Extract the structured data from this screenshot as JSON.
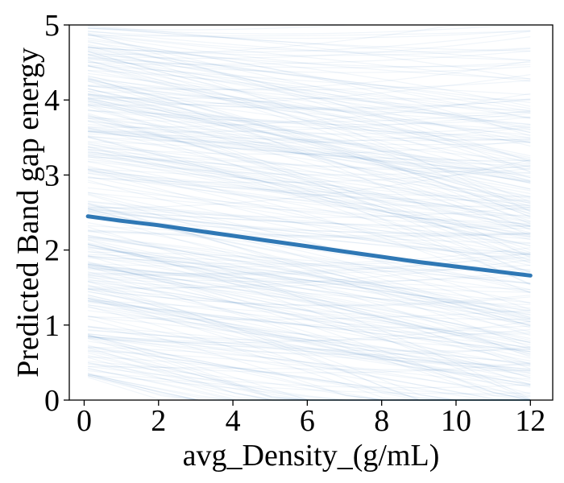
{
  "chart_data": {
    "type": "line",
    "title": "",
    "xlabel": "avg_Density_(g/mL)",
    "ylabel": "Predicted Band gap energy",
    "xlim": [
      -0.4,
      12.6
    ],
    "ylim": [
      0,
      5
    ],
    "x_ticks": [
      0,
      2,
      4,
      6,
      8,
      10,
      12
    ],
    "y_ticks": [
      0,
      1,
      2,
      3,
      4,
      5
    ],
    "grid": false,
    "legend": "none",
    "x": [
      0.1,
      1,
      2,
      3,
      4,
      5,
      6,
      7,
      8,
      9,
      10,
      11,
      12
    ],
    "series": [
      {
        "role": "mean",
        "values": [
          2.45,
          2.39,
          2.33,
          2.26,
          2.19,
          2.12,
          2.05,
          1.98,
          1.91,
          1.84,
          1.78,
          1.72,
          1.66
        ],
        "color": "#2f78b5"
      }
    ],
    "ice_lines": {
      "color": "#2f78b5",
      "count": 320,
      "start_range": [
        0.3,
        5.0
      ],
      "slope_range": [
        -0.15,
        0.0
      ]
    }
  }
}
